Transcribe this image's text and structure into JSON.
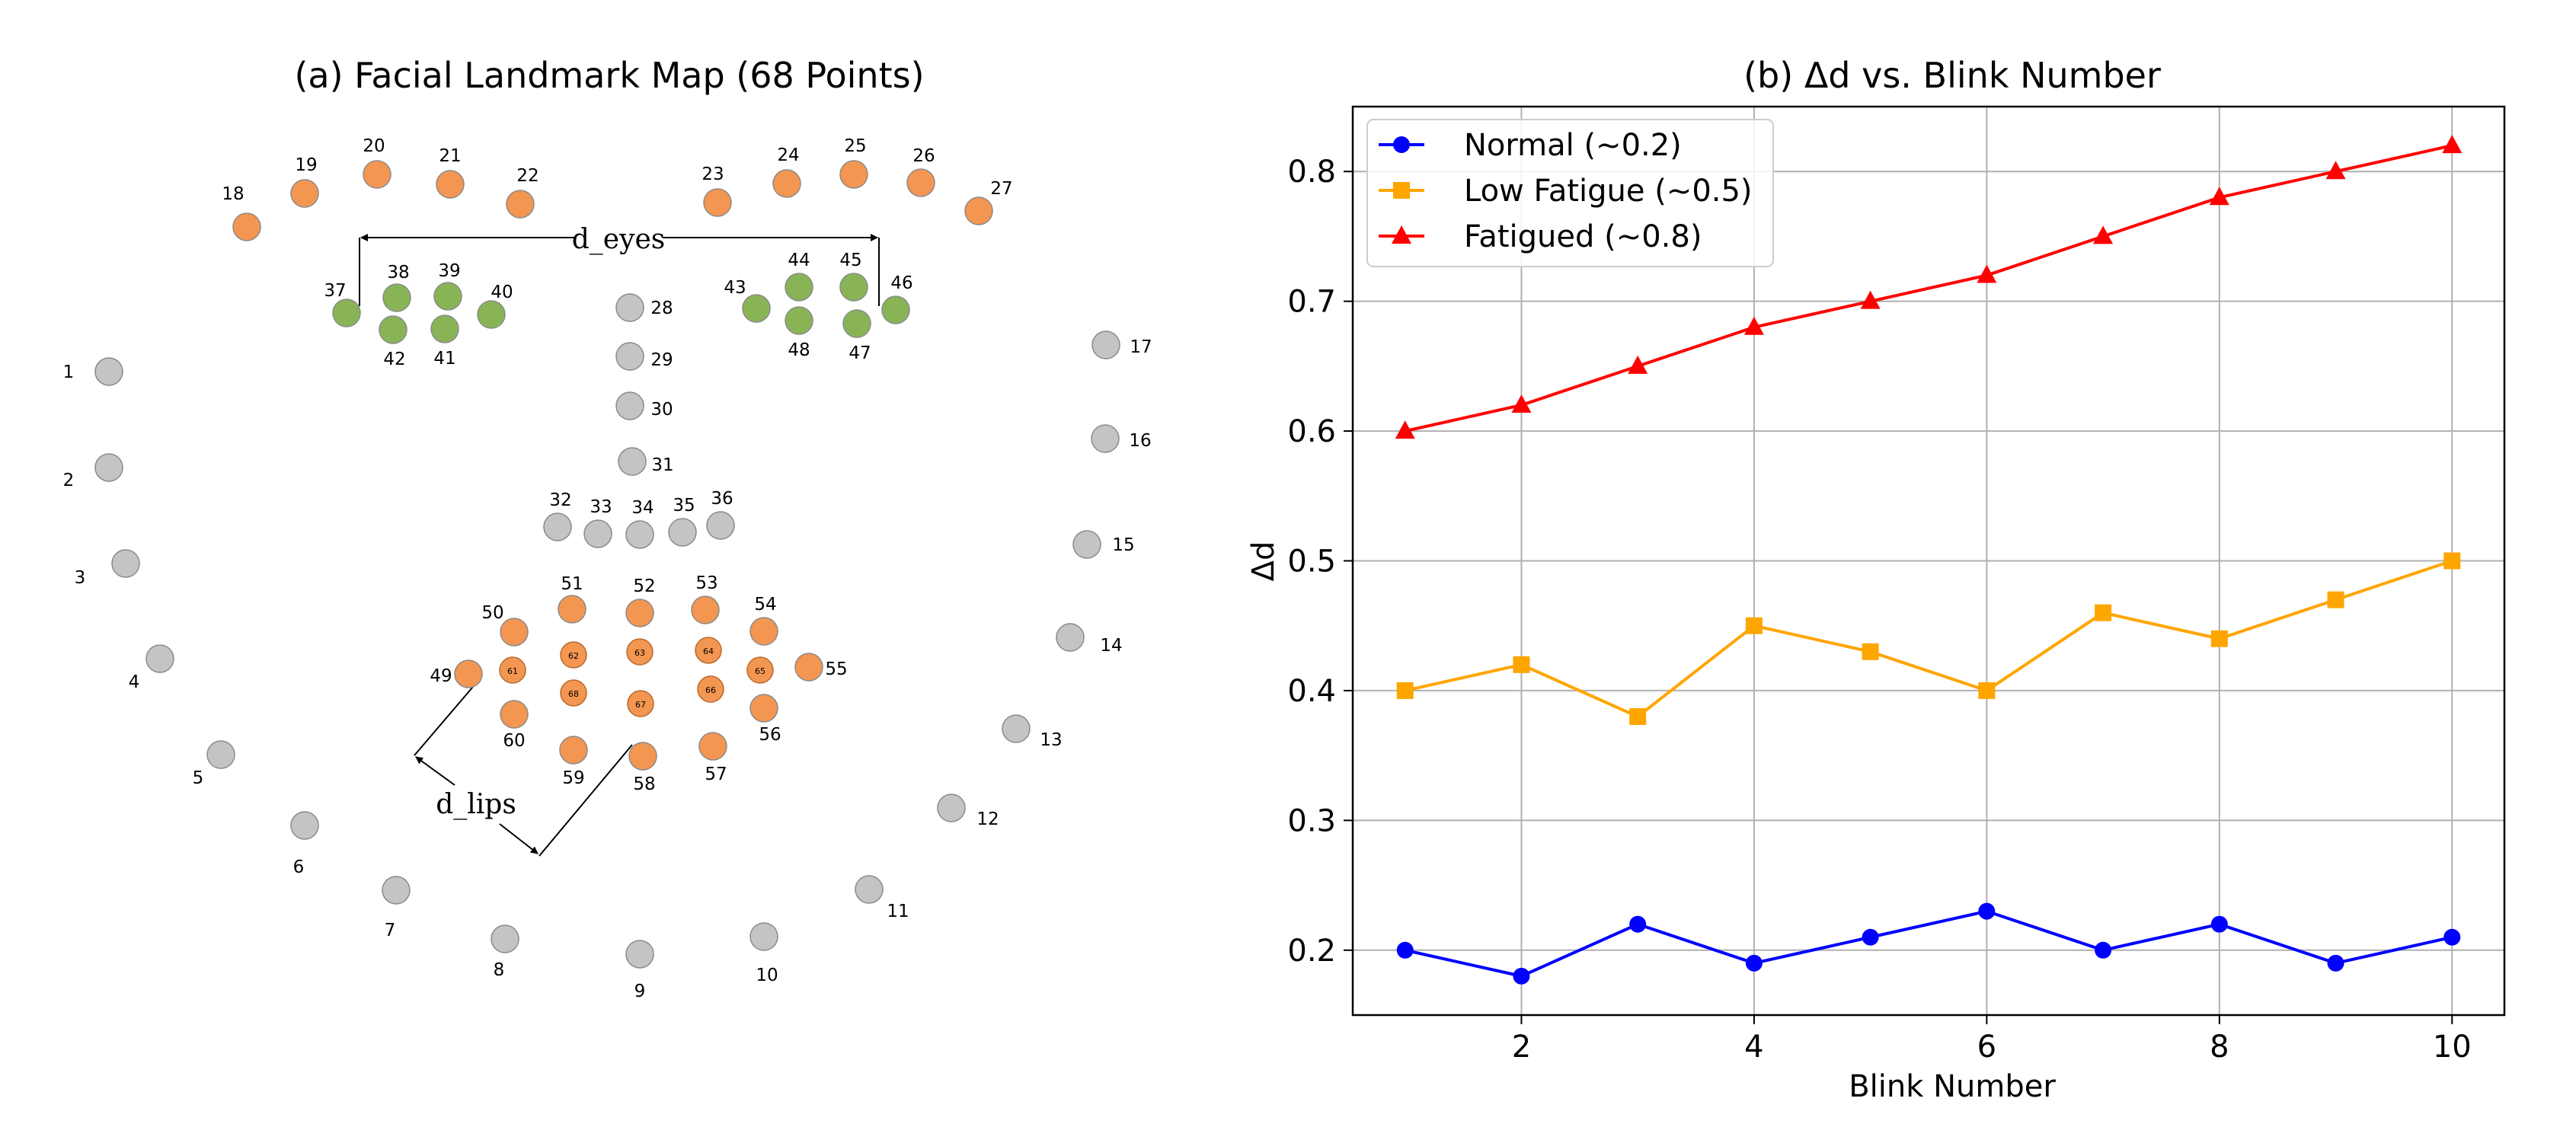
{
  "colors": {
    "blue": "#0000ff",
    "orange": "#ffa500",
    "red": "#ff0000",
    "landmark_orange": "#f39651",
    "landmark_green": "#88b456",
    "landmark_gray": "#c4c4c4",
    "grid": "#b0b0b0"
  },
  "panel_a": {
    "title": "(a) Facial Landmark Map (68 Points)",
    "measure_eyes": "d_eyes",
    "measure_lips": "d_lips",
    "landmarks": [
      {
        "id": "1",
        "group": "jaw"
      },
      {
        "id": "2",
        "group": "jaw"
      },
      {
        "id": "3",
        "group": "jaw"
      },
      {
        "id": "4",
        "group": "jaw"
      },
      {
        "id": "5",
        "group": "jaw"
      },
      {
        "id": "6",
        "group": "jaw"
      },
      {
        "id": "7",
        "group": "jaw"
      },
      {
        "id": "8",
        "group": "jaw"
      },
      {
        "id": "9",
        "group": "jaw"
      },
      {
        "id": "10",
        "group": "jaw"
      },
      {
        "id": "11",
        "group": "jaw"
      },
      {
        "id": "12",
        "group": "jaw"
      },
      {
        "id": "13",
        "group": "jaw"
      },
      {
        "id": "14",
        "group": "jaw"
      },
      {
        "id": "15",
        "group": "jaw"
      },
      {
        "id": "16",
        "group": "jaw"
      },
      {
        "id": "17",
        "group": "jaw"
      },
      {
        "id": "18",
        "group": "brow"
      },
      {
        "id": "19",
        "group": "brow"
      },
      {
        "id": "20",
        "group": "brow"
      },
      {
        "id": "21",
        "group": "brow"
      },
      {
        "id": "22",
        "group": "brow"
      },
      {
        "id": "23",
        "group": "brow"
      },
      {
        "id": "24",
        "group": "brow"
      },
      {
        "id": "25",
        "group": "brow"
      },
      {
        "id": "26",
        "group": "brow"
      },
      {
        "id": "27",
        "group": "brow"
      },
      {
        "id": "28",
        "group": "nose"
      },
      {
        "id": "29",
        "group": "nose"
      },
      {
        "id": "30",
        "group": "nose"
      },
      {
        "id": "31",
        "group": "nose"
      },
      {
        "id": "32",
        "group": "nose"
      },
      {
        "id": "33",
        "group": "nose"
      },
      {
        "id": "34",
        "group": "nose"
      },
      {
        "id": "35",
        "group": "nose"
      },
      {
        "id": "36",
        "group": "nose"
      },
      {
        "id": "37",
        "group": "eye"
      },
      {
        "id": "38",
        "group": "eye"
      },
      {
        "id": "39",
        "group": "eye"
      },
      {
        "id": "40",
        "group": "eye"
      },
      {
        "id": "41",
        "group": "eye"
      },
      {
        "id": "42",
        "group": "eye"
      },
      {
        "id": "43",
        "group": "eye"
      },
      {
        "id": "44",
        "group": "eye"
      },
      {
        "id": "45",
        "group": "eye"
      },
      {
        "id": "46",
        "group": "eye"
      },
      {
        "id": "47",
        "group": "eye"
      },
      {
        "id": "48",
        "group": "eye"
      },
      {
        "id": "49",
        "group": "mouth"
      },
      {
        "id": "50",
        "group": "mouth"
      },
      {
        "id": "51",
        "group": "mouth"
      },
      {
        "id": "52",
        "group": "mouth"
      },
      {
        "id": "53",
        "group": "mouth"
      },
      {
        "id": "54",
        "group": "mouth"
      },
      {
        "id": "55",
        "group": "mouth"
      },
      {
        "id": "56",
        "group": "mouth"
      },
      {
        "id": "57",
        "group": "mouth"
      },
      {
        "id": "58",
        "group": "mouth"
      },
      {
        "id": "59",
        "group": "mouth"
      },
      {
        "id": "60",
        "group": "mouth"
      },
      {
        "id": "61",
        "group": "inner-mouth"
      },
      {
        "id": "62",
        "group": "inner-mouth"
      },
      {
        "id": "63",
        "group": "inner-mouth"
      },
      {
        "id": "64",
        "group": "inner-mouth"
      },
      {
        "id": "65",
        "group": "inner-mouth"
      },
      {
        "id": "66",
        "group": "inner-mouth"
      },
      {
        "id": "67",
        "group": "inner-mouth"
      },
      {
        "id": "68",
        "group": "inner-mouth"
      }
    ]
  },
  "chart_data": {
    "type": "line",
    "title": "(b) Δd vs. Blink Number",
    "xlabel": "Blink Number",
    "ylabel": "Δd",
    "x": [
      1,
      2,
      3,
      4,
      5,
      6,
      7,
      8,
      9,
      10
    ],
    "xlim": [
      0.55,
      10.45
    ],
    "ylim": [
      0.15,
      0.85
    ],
    "xticks": [
      2,
      4,
      6,
      8,
      10
    ],
    "yticks": [
      0.2,
      0.3,
      0.4,
      0.5,
      0.6,
      0.7,
      0.8
    ],
    "grid": true,
    "legend_position": "top-left",
    "series": [
      {
        "name": "Normal (~0.2)",
        "color": "#0000ff",
        "marker": "circle",
        "values": [
          0.2,
          0.18,
          0.22,
          0.19,
          0.21,
          0.23,
          0.2,
          0.22,
          0.19,
          0.21
        ]
      },
      {
        "name": "Low Fatigue (~0.5)",
        "color": "#ffa500",
        "marker": "square",
        "values": [
          0.4,
          0.42,
          0.38,
          0.45,
          0.43,
          0.4,
          0.46,
          0.44,
          0.47,
          0.5
        ]
      },
      {
        "name": "Fatigued (~0.8)",
        "color": "#ff0000",
        "marker": "triangle",
        "values": [
          0.6,
          0.62,
          0.65,
          0.68,
          0.7,
          0.72,
          0.75,
          0.78,
          0.8,
          0.82
        ]
      }
    ]
  }
}
